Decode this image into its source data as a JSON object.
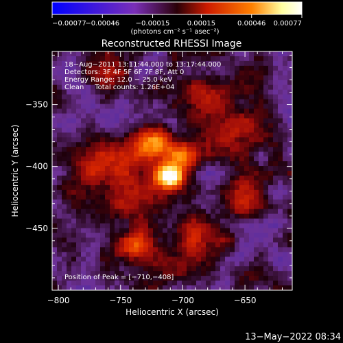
{
  "chart_data": {
    "type": "heatmap",
    "title": "Reconstructed RHESSI Image",
    "xlabel": "Heliocentric X (arcsec)",
    "ylabel": "Heliocentric Y (arcsec)",
    "xlim": [
      -805,
      -612
    ],
    "ylim": [
      -500,
      -307
    ],
    "x_ticks": [
      -800,
      -750,
      -700,
      -650
    ],
    "y_ticks": [
      -350,
      -400,
      -450
    ],
    "x_tick_labels": [
      "−800",
      "−750",
      "−700",
      "−650"
    ],
    "y_tick_labels": [
      "−350",
      "−400",
      "−450"
    ],
    "colorbar": {
      "min": -0.00077,
      "max": 0.00077,
      "ticks": [
        -0.00077,
        -0.00046,
        -0.00015,
        0.00015,
        0.00046,
        0.00077
      ],
      "tick_labels": [
        "−0.00077",
        "−0.00046",
        "−0.00015",
        "0.00015",
        "0.00046",
        "0.00077"
      ],
      "units_label": "(photons cm⁻² s⁻¹ asec⁻²)",
      "colors": [
        "#0000ff",
        "#7a2fb8",
        "#3a0010",
        "#cc1a00",
        "#ff8000",
        "#ffffcc",
        "#ffffff"
      ]
    },
    "info_lines": [
      "18−Aug−2011 13:11:44.000 to 13:17:44.000",
      "Detectors: 3F 4F 5F 6F 7F 8F, Att 0",
      "Energy Range: 12.0 − 25.0 keV",
      "Clean     Total counts: 1.26E+04"
    ],
    "peak_label": "Position of Peak = [−710,−408]",
    "peak": {
      "x": -710,
      "y": -408
    },
    "emission_sources": [
      {
        "x": -710,
        "y": -408,
        "sigma_x": 7,
        "sigma_y": 6,
        "amp": 1.0
      },
      {
        "x": -725,
        "y": -383,
        "sigma_x": 14,
        "sigma_y": 10,
        "amp": 0.55
      },
      {
        "x": -700,
        "y": -392,
        "sigma_x": 9,
        "sigma_y": 8,
        "amp": 0.45
      },
      {
        "x": -745,
        "y": -420,
        "sigma_x": 25,
        "sigma_y": 18,
        "amp": 0.3
      },
      {
        "x": -680,
        "y": -345,
        "sigma_x": 14,
        "sigma_y": 12,
        "amp": 0.35
      },
      {
        "x": -655,
        "y": -375,
        "sigma_x": 15,
        "sigma_y": 12,
        "amp": 0.3
      },
      {
        "x": -740,
        "y": -465,
        "sigma_x": 12,
        "sigma_y": 8,
        "amp": 0.4
      },
      {
        "x": -690,
        "y": -455,
        "sigma_x": 18,
        "sigma_y": 14,
        "amp": 0.28
      },
      {
        "x": -770,
        "y": -395,
        "sigma_x": 12,
        "sigma_y": 12,
        "amp": 0.25
      },
      {
        "x": -650,
        "y": -425,
        "sigma_x": 12,
        "sigma_y": 14,
        "amp": 0.2
      },
      {
        "x": -760,
        "y": -330,
        "sigma_x": 12,
        "sigma_y": 10,
        "amp": 0.22
      },
      {
        "x": -710,
        "y": -485,
        "sigma_x": 15,
        "sigma_y": 8,
        "amp": 0.18
      }
    ]
  },
  "footer_timestamp": "13−May−2022 08:34"
}
